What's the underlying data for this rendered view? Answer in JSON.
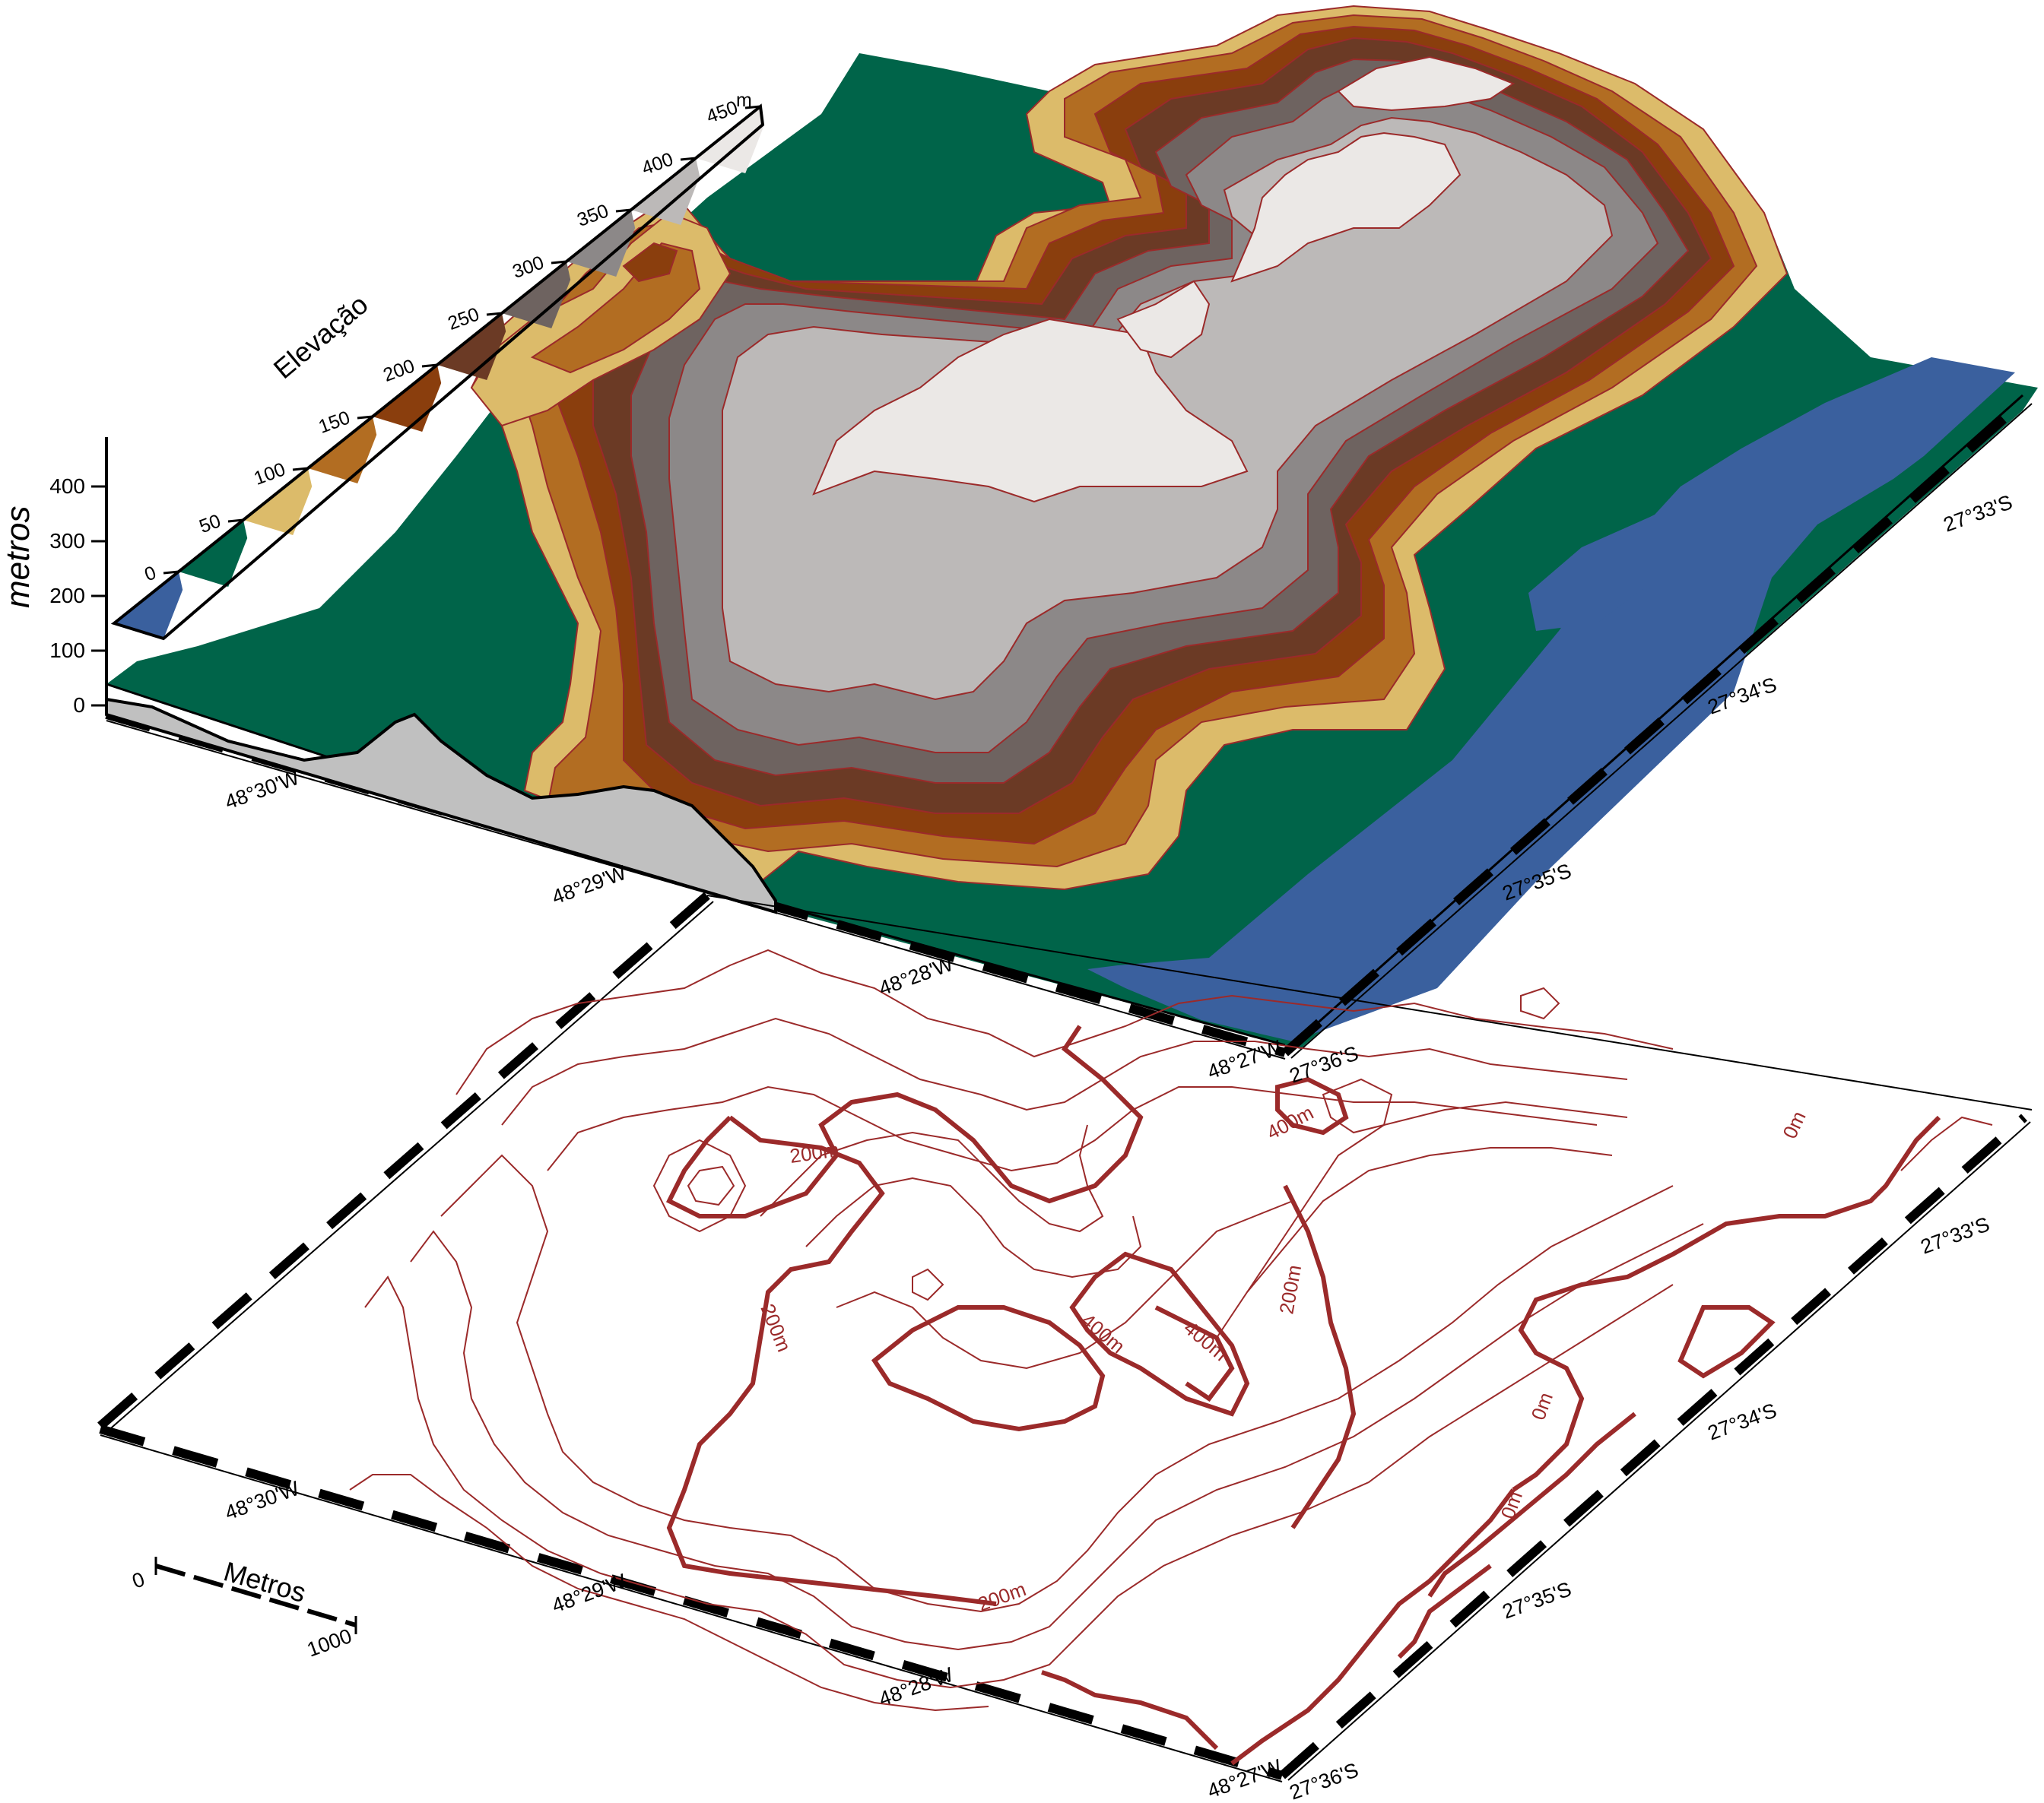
{
  "map": {
    "lon_labels": [
      "48°30'W",
      "48°29'W",
      "48°28'W",
      "48°27'W"
    ],
    "lat_labels": [
      "27°33'S",
      "27°34'S",
      "27°35'S",
      "27°36'S"
    ]
  },
  "colorbar": {
    "title": "Elevação",
    "unit": "m",
    "ticks": [
      "0",
      "50",
      "100",
      "150",
      "200",
      "250",
      "300",
      "350",
      "400",
      "450"
    ],
    "colors": [
      "#3a609e",
      "#006449",
      "#dcbb6a",
      "#b26d22",
      "#8a3e0d",
      "#6b3a25",
      "#6e6360",
      "#8c8888",
      "#bcb9b8",
      "#ebe8e6"
    ]
  },
  "profile": {
    "axis_title": "metros",
    "ticks": [
      "0",
      "100",
      "200",
      "300",
      "400"
    ]
  },
  "contours": {
    "labels": [
      "200m",
      "200m",
      "200m",
      "200m",
      "400m",
      "400m",
      "400m",
      "0m",
      "0m",
      "0m"
    ],
    "line_color": "#9b2a2a"
  },
  "scalebar": {
    "title": "Metros",
    "start": "0",
    "end": "1000"
  },
  "land_colors": {
    "sea": "#3a609e",
    "lowland": "#006449",
    "profile_fill": "#c0c0c0"
  }
}
